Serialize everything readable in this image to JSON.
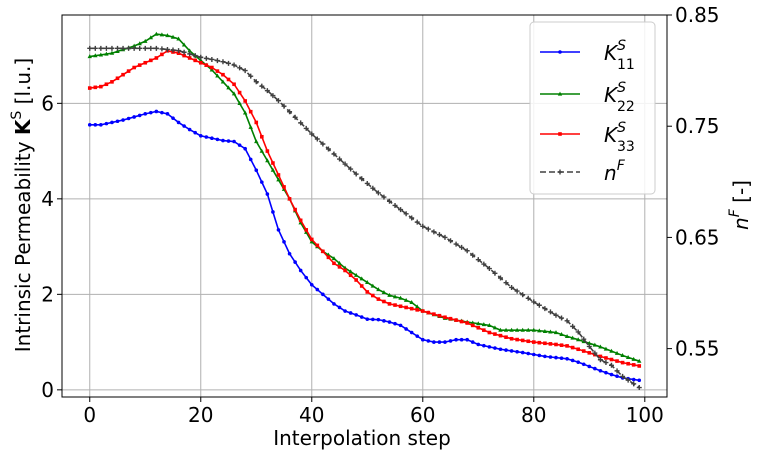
{
  "chart_data": {
    "type": "line",
    "xlabel": "Interpolation step",
    "ylabel_left": {
      "pre": "Intrinsic Permeability ",
      "bold": "K",
      "sup": "S",
      "post": " [l.u.]"
    },
    "ylabel_right": {
      "base": "n",
      "sup": "F",
      "post": " [-]"
    },
    "xlim": [
      -5,
      104
    ],
    "ylim_left": [
      -0.15,
      7.85
    ],
    "ylim_right": [
      0.5065,
      0.85
    ],
    "x_ticks": [
      0,
      20,
      40,
      60,
      80,
      100
    ],
    "y_left_ticks": [
      0,
      2,
      4,
      6
    ],
    "y_right_ticks": [
      0.55,
      0.65,
      0.75,
      0.85
    ],
    "y_right_tick_labels": [
      "0.55",
      "0.65",
      "0.75",
      "0.85"
    ],
    "grid": true,
    "legend_position": "top-right",
    "series": [
      {
        "name_base": "K",
        "name_sup": "S",
        "name_sub": "11",
        "axis": "left",
        "color": "#0000ff",
        "marker": "circle",
        "dashed": false,
        "keypoints": [
          [
            0,
            5.55
          ],
          [
            2,
            5.55
          ],
          [
            6,
            5.65
          ],
          [
            10,
            5.78
          ],
          [
            12,
            5.83
          ],
          [
            14,
            5.78
          ],
          [
            16,
            5.6
          ],
          [
            18,
            5.45
          ],
          [
            20,
            5.32
          ],
          [
            24,
            5.22
          ],
          [
            26,
            5.2
          ],
          [
            28,
            5.05
          ],
          [
            30,
            4.6
          ],
          [
            32,
            4.1
          ],
          [
            34,
            3.35
          ],
          [
            36,
            2.85
          ],
          [
            38,
            2.5
          ],
          [
            40,
            2.2
          ],
          [
            42,
            2.0
          ],
          [
            44,
            1.8
          ],
          [
            46,
            1.65
          ],
          [
            48,
            1.57
          ],
          [
            50,
            1.48
          ],
          [
            52,
            1.47
          ],
          [
            54,
            1.42
          ],
          [
            56,
            1.35
          ],
          [
            58,
            1.2
          ],
          [
            60,
            1.05
          ],
          [
            62,
            1.0
          ],
          [
            64,
            1.0
          ],
          [
            66,
            1.05
          ],
          [
            68,
            1.05
          ],
          [
            70,
            0.95
          ],
          [
            74,
            0.85
          ],
          [
            78,
            0.78
          ],
          [
            82,
            0.7
          ],
          [
            86,
            0.65
          ],
          [
            88,
            0.58
          ],
          [
            92,
            0.4
          ],
          [
            94,
            0.32
          ],
          [
            96,
            0.25
          ],
          [
            99,
            0.2
          ]
        ]
      },
      {
        "name_base": "K",
        "name_sup": "S",
        "name_sub": "22",
        "axis": "left",
        "color": "#008000",
        "marker": "triangle",
        "dashed": false,
        "keypoints": [
          [
            0,
            6.98
          ],
          [
            4,
            7.05
          ],
          [
            8,
            7.2
          ],
          [
            10,
            7.3
          ],
          [
            12,
            7.45
          ],
          [
            14,
            7.42
          ],
          [
            16,
            7.35
          ],
          [
            18,
            7.1
          ],
          [
            20,
            6.9
          ],
          [
            22,
            6.7
          ],
          [
            24,
            6.45
          ],
          [
            26,
            6.2
          ],
          [
            28,
            5.8
          ],
          [
            30,
            5.2
          ],
          [
            32,
            4.8
          ],
          [
            34,
            4.4
          ],
          [
            36,
            4.0
          ],
          [
            38,
            3.5
          ],
          [
            40,
            3.1
          ],
          [
            42,
            2.9
          ],
          [
            44,
            2.75
          ],
          [
            46,
            2.55
          ],
          [
            48,
            2.4
          ],
          [
            50,
            2.25
          ],
          [
            52,
            2.1
          ],
          [
            54,
            1.98
          ],
          [
            56,
            1.92
          ],
          [
            58,
            1.83
          ],
          [
            60,
            1.65
          ],
          [
            64,
            1.5
          ],
          [
            68,
            1.42
          ],
          [
            72,
            1.35
          ],
          [
            74,
            1.25
          ],
          [
            78,
            1.25
          ],
          [
            80,
            1.25
          ],
          [
            84,
            1.2
          ],
          [
            86,
            1.12
          ],
          [
            88,
            1.05
          ],
          [
            92,
            0.9
          ],
          [
            96,
            0.72
          ],
          [
            99,
            0.6
          ]
        ]
      },
      {
        "name_base": "K",
        "name_sup": "S",
        "name_sub": "33",
        "axis": "left",
        "color": "#ff0000",
        "marker": "square",
        "dashed": false,
        "keypoints": [
          [
            0,
            6.32
          ],
          [
            2,
            6.35
          ],
          [
            4,
            6.45
          ],
          [
            6,
            6.6
          ],
          [
            8,
            6.75
          ],
          [
            10,
            6.85
          ],
          [
            12,
            6.95
          ],
          [
            14,
            7.1
          ],
          [
            16,
            7.05
          ],
          [
            18,
            6.95
          ],
          [
            20,
            6.85
          ],
          [
            22,
            6.75
          ],
          [
            24,
            6.6
          ],
          [
            26,
            6.4
          ],
          [
            28,
            6.05
          ],
          [
            30,
            5.6
          ],
          [
            32,
            5.0
          ],
          [
            34,
            4.5
          ],
          [
            36,
            4.0
          ],
          [
            38,
            3.55
          ],
          [
            40,
            3.15
          ],
          [
            42,
            2.9
          ],
          [
            44,
            2.65
          ],
          [
            46,
            2.5
          ],
          [
            48,
            2.3
          ],
          [
            50,
            2.05
          ],
          [
            52,
            1.9
          ],
          [
            54,
            1.8
          ],
          [
            56,
            1.75
          ],
          [
            58,
            1.7
          ],
          [
            60,
            1.65
          ],
          [
            64,
            1.52
          ],
          [
            68,
            1.4
          ],
          [
            72,
            1.2
          ],
          [
            76,
            1.07
          ],
          [
            80,
            1.0
          ],
          [
            84,
            0.95
          ],
          [
            86,
            0.92
          ],
          [
            88,
            0.85
          ],
          [
            92,
            0.7
          ],
          [
            96,
            0.57
          ],
          [
            99,
            0.5
          ]
        ]
      },
      {
        "name_base": "n",
        "name_sup": "F",
        "name_sub": "",
        "axis": "right",
        "color": "#404040",
        "marker": "plus",
        "dashed": true,
        "keypoints": [
          [
            0,
            0.82
          ],
          [
            4,
            0.82
          ],
          [
            8,
            0.82
          ],
          [
            12,
            0.82
          ],
          [
            16,
            0.818
          ],
          [
            20,
            0.812
          ],
          [
            24,
            0.808
          ],
          [
            26,
            0.805
          ],
          [
            28,
            0.8
          ],
          [
            30,
            0.79
          ],
          [
            32,
            0.782
          ],
          [
            34,
            0.773
          ],
          [
            36,
            0.763
          ],
          [
            38,
            0.753
          ],
          [
            40,
            0.743
          ],
          [
            44,
            0.725
          ],
          [
            48,
            0.707
          ],
          [
            52,
            0.69
          ],
          [
            56,
            0.675
          ],
          [
            60,
            0.66
          ],
          [
            64,
            0.65
          ],
          [
            68,
            0.638
          ],
          [
            72,
            0.622
          ],
          [
            76,
            0.605
          ],
          [
            80,
            0.592
          ],
          [
            84,
            0.58
          ],
          [
            86,
            0.575
          ],
          [
            88,
            0.565
          ],
          [
            90,
            0.552
          ],
          [
            92,
            0.54
          ],
          [
            94,
            0.535
          ],
          [
            96,
            0.525
          ],
          [
            99,
            0.515
          ]
        ]
      }
    ]
  }
}
